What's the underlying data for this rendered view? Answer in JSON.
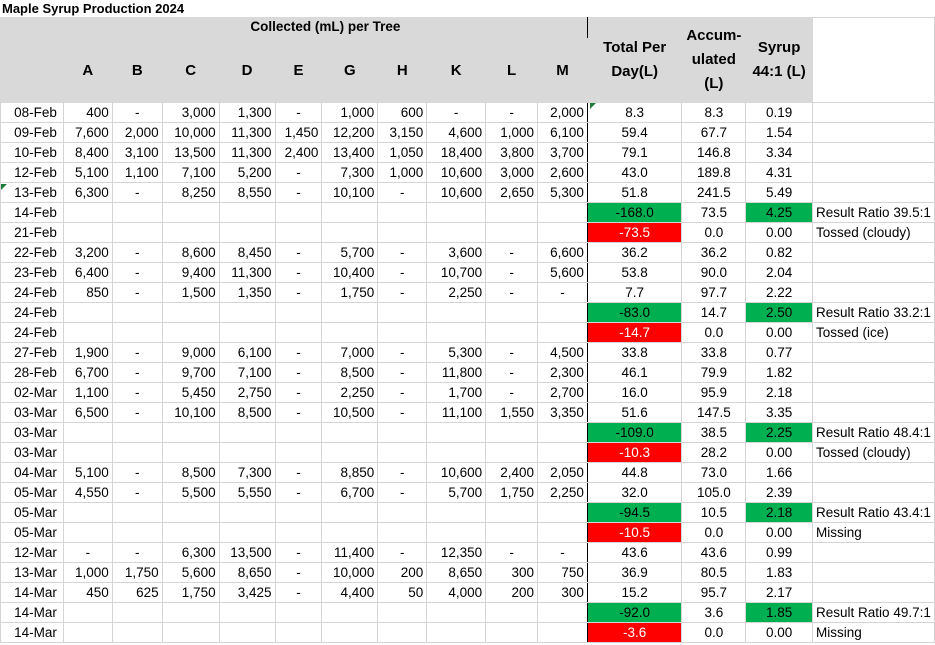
{
  "title": "Maple Syrup Production 2024",
  "header": {
    "group_label": "Collected (mL) per Tree",
    "trees": [
      "A",
      "B",
      "C",
      "D",
      "E",
      "G",
      "H",
      "K",
      "L",
      "M"
    ],
    "total_label": "Total Per Day(L)",
    "accum_label": "Accum-ulated (L)",
    "syrup_label": "Syrup 44:1 (L)"
  },
  "colors": {
    "header_bg": "#d9d9d9",
    "green": "#00b050",
    "red": "#ff0000",
    "grid": "#d4d4d4"
  },
  "rows": [
    {
      "date": "08-Feb",
      "trees": [
        "400",
        "-",
        "3,000",
        "1,300",
        "-",
        "1,000",
        "600",
        "-",
        "-",
        "2,000"
      ],
      "total": "8.3",
      "accum": "8.3",
      "syrup": "0.19",
      "note": ""
    },
    {
      "date": "09-Feb",
      "trees": [
        "7,600",
        "2,000",
        "10,000",
        "11,300",
        "1,450",
        "12,200",
        "3,150",
        "4,600",
        "1,000",
        "6,100"
      ],
      "total": "59.4",
      "accum": "67.7",
      "syrup": "1.54",
      "note": ""
    },
    {
      "date": "10-Feb",
      "trees": [
        "8,400",
        "3,100",
        "13,500",
        "11,300",
        "2,400",
        "13,400",
        "1,050",
        "18,400",
        "3,800",
        "3,700"
      ],
      "total": "79.1",
      "accum": "146.8",
      "syrup": "3.34",
      "note": ""
    },
    {
      "date": "12-Feb",
      "trees": [
        "5,100",
        "1,100",
        "7,100",
        "5,200",
        "-",
        "7,300",
        "1,000",
        "10,600",
        "3,000",
        "2,600"
      ],
      "total": "43.0",
      "accum": "189.8",
      "syrup": "4.31",
      "note": ""
    },
    {
      "date": "13-Feb",
      "trees": [
        "6,300",
        "-",
        "8,250",
        "8,550",
        "-",
        "10,100",
        "-",
        "10,600",
        "2,650",
        "5,300"
      ],
      "total": "51.8",
      "accum": "241.5",
      "syrup": "5.49",
      "note": ""
    },
    {
      "date": "14-Feb",
      "trees": [
        "",
        "",
        "",
        "",
        "",
        "",
        "",
        "",
        "",
        ""
      ],
      "total": "-168.0",
      "accum": "73.5",
      "syrup": "4.25",
      "note": "Result Ratio 39.5:1",
      "total_style": "green",
      "syrup_style": "green"
    },
    {
      "date": "21-Feb",
      "trees": [
        "",
        "",
        "",
        "",
        "",
        "",
        "",
        "",
        "",
        ""
      ],
      "total": "-73.5",
      "accum": "0.0",
      "syrup": "0.00",
      "note": "Tossed (cloudy)",
      "total_style": "red"
    },
    {
      "date": "22-Feb",
      "trees": [
        "3,200",
        "-",
        "8,600",
        "8,450",
        "-",
        "5,700",
        "-",
        "3,600",
        "-",
        "6,600"
      ],
      "total": "36.2",
      "accum": "36.2",
      "syrup": "0.82",
      "note": ""
    },
    {
      "date": "23-Feb",
      "trees": [
        "6,400",
        "-",
        "9,400",
        "11,300",
        "-",
        "10,400",
        "-",
        "10,700",
        "-",
        "5,600"
      ],
      "total": "53.8",
      "accum": "90.0",
      "syrup": "2.04",
      "note": ""
    },
    {
      "date": "24-Feb",
      "trees": [
        "850",
        "-",
        "1,500",
        "1,350",
        "-",
        "1,750",
        "-",
        "2,250",
        "-",
        "-"
      ],
      "total": "7.7",
      "accum": "97.7",
      "syrup": "2.22",
      "note": ""
    },
    {
      "date": "24-Feb",
      "trees": [
        "",
        "",
        "",
        "",
        "",
        "",
        "",
        "",
        "",
        ""
      ],
      "total": "-83.0",
      "accum": "14.7",
      "syrup": "2.50",
      "note": "Result Ratio 33.2:1",
      "total_style": "green",
      "syrup_style": "green"
    },
    {
      "date": "24-Feb",
      "trees": [
        "",
        "",
        "",
        "",
        "",
        "",
        "",
        "",
        "",
        ""
      ],
      "total": "-14.7",
      "accum": "0.0",
      "syrup": "0.00",
      "note": "Tossed (ice)",
      "total_style": "red"
    },
    {
      "date": "27-Feb",
      "trees": [
        "1,900",
        "-",
        "9,000",
        "6,100",
        "-",
        "7,000",
        "-",
        "5,300",
        "-",
        "4,500"
      ],
      "total": "33.8",
      "accum": "33.8",
      "syrup": "0.77",
      "note": ""
    },
    {
      "date": "28-Feb",
      "trees": [
        "6,700",
        "-",
        "9,700",
        "7,100",
        "-",
        "8,500",
        "-",
        "11,800",
        "-",
        "2,300"
      ],
      "total": "46.1",
      "accum": "79.9",
      "syrup": "1.82",
      "note": ""
    },
    {
      "date": "02-Mar",
      "trees": [
        "1,100",
        "-",
        "5,450",
        "2,750",
        "-",
        "2,250",
        "-",
        "1,700",
        "-",
        "2,700"
      ],
      "total": "16.0",
      "accum": "95.9",
      "syrup": "2.18",
      "note": ""
    },
    {
      "date": "03-Mar",
      "trees": [
        "6,500",
        "-",
        "10,100",
        "8,500",
        "-",
        "10,500",
        "-",
        "11,100",
        "1,550",
        "3,350"
      ],
      "total": "51.6",
      "accum": "147.5",
      "syrup": "3.35",
      "note": ""
    },
    {
      "date": "03-Mar",
      "trees": [
        "",
        "",
        "",
        "",
        "",
        "",
        "",
        "",
        "",
        ""
      ],
      "total": "-109.0",
      "accum": "38.5",
      "syrup": "2.25",
      "note": "Result Ratio 48.4:1",
      "total_style": "green",
      "syrup_style": "green"
    },
    {
      "date": "03-Mar",
      "trees": [
        "",
        "",
        "",
        "",
        "",
        "",
        "",
        "",
        "",
        ""
      ],
      "total": "-10.3",
      "accum": "28.2",
      "syrup": "0.00",
      "note": "Tossed (cloudy)",
      "total_style": "red"
    },
    {
      "date": "04-Mar",
      "trees": [
        "5,100",
        "-",
        "8,500",
        "7,300",
        "-",
        "8,850",
        "-",
        "10,600",
        "2,400",
        "2,050"
      ],
      "total": "44.8",
      "accum": "73.0",
      "syrup": "1.66",
      "note": ""
    },
    {
      "date": "05-Mar",
      "trees": [
        "4,550",
        "-",
        "5,500",
        "5,550",
        "-",
        "6,700",
        "-",
        "5,700",
        "1,750",
        "2,250"
      ],
      "total": "32.0",
      "accum": "105.0",
      "syrup": "2.39",
      "note": ""
    },
    {
      "date": "05-Mar",
      "trees": [
        "",
        "",
        "",
        "",
        "",
        "",
        "",
        "",
        "",
        ""
      ],
      "total": "-94.5",
      "accum": "10.5",
      "syrup": "2.18",
      "note": "Result Ratio 43.4:1",
      "total_style": "green",
      "syrup_style": "green"
    },
    {
      "date": "05-Mar",
      "trees": [
        "",
        "",
        "",
        "",
        "",
        "",
        "",
        "",
        "",
        ""
      ],
      "total": "-10.5",
      "accum": "0.0",
      "syrup": "0.00",
      "note": "Missing",
      "total_style": "red"
    },
    {
      "date": "12-Mar",
      "trees": [
        "-",
        "-",
        "6,300",
        "13,500",
        "-",
        "11,400",
        "-",
        "12,350",
        "-",
        "-"
      ],
      "total": "43.6",
      "accum": "43.6",
      "syrup": "0.99",
      "note": ""
    },
    {
      "date": "13-Mar",
      "trees": [
        "1,000",
        "1,750",
        "5,600",
        "8,650",
        "-",
        "10,000",
        "200",
        "8,650",
        "300",
        "750"
      ],
      "total": "36.9",
      "accum": "80.5",
      "syrup": "1.83",
      "note": ""
    },
    {
      "date": "14-Mar",
      "trees": [
        "450",
        "625",
        "1,750",
        "3,425",
        "-",
        "4,400",
        "50",
        "4,000",
        "200",
        "300"
      ],
      "total": "15.2",
      "accum": "95.7",
      "syrup": "2.17",
      "note": ""
    },
    {
      "date": "14-Mar",
      "trees": [
        "",
        "",
        "",
        "",
        "",
        "",
        "",
        "",
        "",
        ""
      ],
      "total": "-92.0",
      "accum": "3.6",
      "syrup": "1.85",
      "note": "Result Ratio 49.7:1",
      "total_style": "green",
      "syrup_style": "green"
    },
    {
      "date": "14-Mar",
      "trees": [
        "",
        "",
        "",
        "",
        "",
        "",
        "",
        "",
        "",
        ""
      ],
      "total": "-3.6",
      "accum": "0.0",
      "syrup": "0.00",
      "note": "Missing",
      "total_style": "red"
    }
  ]
}
